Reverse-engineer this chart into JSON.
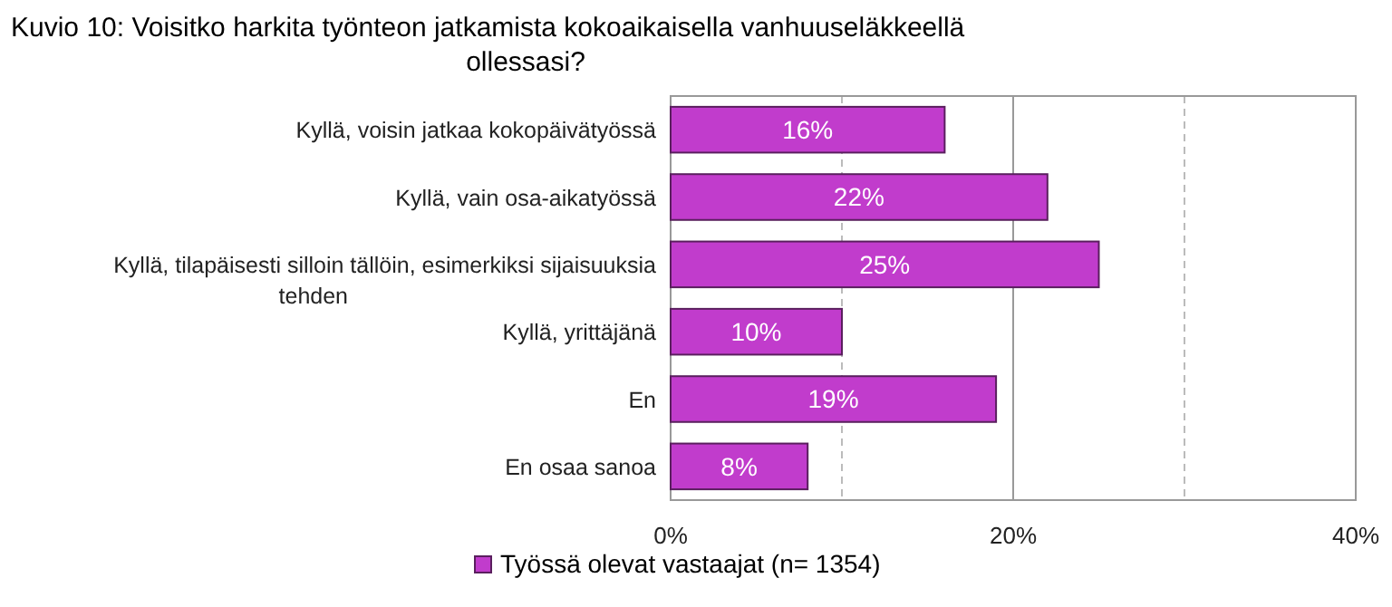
{
  "chart_data": {
    "type": "bar",
    "orientation": "horizontal",
    "title": "Kuvio 10: Voisitko harkita työnteon jatkamista kokoaikaisella vanhuuseläkkeellä ollessasi?",
    "categories": [
      "Kyllä, voisin jatkaa kokopäivätyössä",
      "Kyllä, vain osa-aikatyössä",
      "Kyllä, tilapäisesti silloin tällöin, esimerkiksi sijaisuuksia tehden",
      "Kyllä, yrittäjänä",
      "En",
      "En osaa sanoa"
    ],
    "series": [
      {
        "name": "Työssä olevat vastaajat (n= 1354)",
        "color": "#c13ccc",
        "values": [
          16,
          22,
          25,
          10,
          19,
          8
        ]
      }
    ],
    "value_labels": [
      "16%",
      "22%",
      "25%",
      "10%",
      "19%",
      "8%"
    ],
    "xlim": [
      0,
      40
    ],
    "xticks": [
      {
        "value": 0,
        "label": "0%"
      },
      {
        "value": 10,
        "label": null
      },
      {
        "value": 20,
        "label": "20%"
      },
      {
        "value": 30,
        "label": null
      },
      {
        "value": 40,
        "label": "40%"
      }
    ],
    "ref_lines": [
      {
        "axis": "x",
        "value": 20,
        "color": "#999999",
        "line_style": "solid"
      }
    ],
    "grid": "x",
    "legend": "bottom"
  }
}
